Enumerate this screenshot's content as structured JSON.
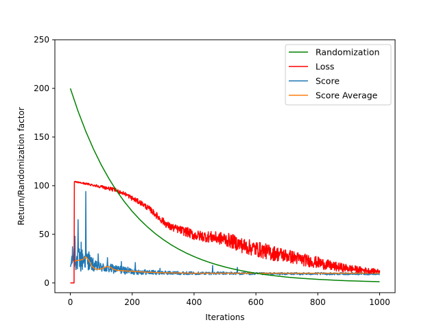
{
  "chart_data": {
    "type": "line",
    "title": "",
    "xlabel": "Iterations",
    "ylabel": "Return/Randomization factor",
    "xlim": [
      -50,
      1050
    ],
    "ylim": [
      -10,
      250
    ],
    "xticks": [
      0,
      200,
      400,
      600,
      800,
      1000
    ],
    "yticks": [
      0,
      50,
      100,
      150,
      200,
      250
    ],
    "grid": false,
    "legend_position": "top-right",
    "series": [
      {
        "name": "Randomization",
        "color": "#008000",
        "style": "smooth",
        "x": [
          0,
          25,
          50,
          75,
          100,
          125,
          150,
          175,
          200,
          225,
          250,
          275,
          300,
          325,
          350,
          375,
          400,
          425,
          450,
          475,
          500,
          525,
          550,
          575,
          600,
          625,
          650,
          675,
          700,
          725,
          750,
          775,
          800,
          825,
          850,
          875,
          900,
          925,
          950,
          975,
          1000
        ],
        "values": [
          200,
          176.5,
          155.8,
          137.5,
          121.3,
          107.1,
          94.5,
          83.4,
          73.6,
          65.0,
          57.4,
          50.6,
          44.7,
          39.4,
          34.8,
          30.7,
          27.1,
          23.9,
          21.1,
          18.6,
          16.4,
          14.5,
          12.8,
          11.3,
          10.0,
          8.8,
          7.8,
          6.9,
          6.0,
          5.3,
          4.7,
          4.2,
          3.7,
          3.3,
          2.9,
          2.5,
          2.2,
          2.0,
          1.7,
          1.5,
          1.3
        ]
      },
      {
        "name": "Loss",
        "color": "#ff0000",
        "style": "noisy",
        "x": [
          0,
          12,
          13,
          15,
          50,
          100,
          150,
          180,
          200,
          230,
          260,
          290,
          320,
          350,
          380,
          400,
          430,
          460,
          500,
          530,
          560,
          600,
          650,
          700,
          750,
          800,
          850,
          900,
          950,
          1000
        ],
        "values": [
          0,
          0,
          104,
          104,
          102,
          99,
          95,
          91,
          87,
          82,
          75,
          66,
          58,
          55,
          52,
          49,
          48,
          47,
          45,
          42,
          38,
          35,
          31,
          28,
          24,
          21,
          17,
          15,
          13,
          12
        ],
        "noise": [
          0,
          0,
          0,
          0.5,
          1,
          1.5,
          2,
          2,
          2.5,
          2.5,
          3,
          3.5,
          4,
          4,
          5,
          5,
          5.5,
          6,
          7,
          7.5,
          8,
          8,
          8,
          7,
          6.5,
          6,
          5,
          4,
          3,
          2
        ]
      },
      {
        "name": "Score",
        "color": "#1f77b4",
        "style": "noisy",
        "x": [
          0,
          5,
          10,
          20,
          30,
          40,
          50,
          60,
          80,
          100,
          120,
          150,
          200,
          250,
          300,
          400,
          500,
          600,
          700,
          800,
          900,
          1000
        ],
        "values": [
          15,
          25,
          28,
          24,
          22,
          24,
          25,
          22,
          17,
          16,
          15,
          14,
          12,
          11,
          10.5,
          10,
          10,
          9.5,
          9.5,
          9.5,
          9.5,
          9.5
        ],
        "noise": [
          3,
          10,
          14,
          12,
          14,
          12,
          11,
          9,
          6,
          5,
          5,
          4.5,
          3.5,
          2.5,
          2,
          1.5,
          1.5,
          1.2,
          1.2,
          1.2,
          1.2,
          1.2
        ],
        "spikes": [
          [
            15,
            48
          ],
          [
            25,
            65
          ],
          [
            35,
            42
          ],
          [
            50,
            94
          ],
          [
            60,
            32
          ],
          [
            90,
            30
          ],
          [
            120,
            26
          ],
          [
            165,
            22
          ],
          [
            210,
            21
          ],
          [
            290,
            15
          ],
          [
            460,
            18
          ],
          [
            540,
            16
          ]
        ]
      },
      {
        "name": "Score Average",
        "color": "#ff7f0e",
        "style": "smooth",
        "x": [
          10,
          20,
          30,
          40,
          50,
          60,
          70,
          80,
          90,
          100,
          110,
          120,
          130,
          140,
          150,
          170,
          200,
          250,
          300,
          400,
          500,
          600,
          700,
          800,
          900,
          1000
        ],
        "values": [
          22,
          23,
          23.5,
          24,
          27,
          23,
          17,
          14.5,
          14,
          14.5,
          16,
          17,
          16,
          14,
          13,
          12.5,
          12,
          11,
          10.5,
          10,
          10,
          10,
          10,
          10,
          10,
          10
        ]
      }
    ]
  }
}
